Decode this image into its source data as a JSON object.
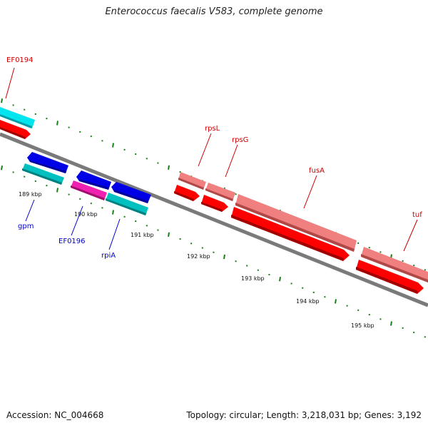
{
  "title": "Enterococcus faecalis V583, complete genome",
  "colors": {
    "forward_cds": "#ff0000",
    "forward_rrna_like": "#f08080",
    "reverse_cds": "#0000e6",
    "reverse_teal": "#00c0c0",
    "reverse_magenta": "#f020b0",
    "cyan_partial": "#00e5ee",
    "backbone": "#808080",
    "tick": "#1a7f1a",
    "label_forward": "#cc0000",
    "label_reverse": "#0000cc"
  },
  "ticks": [
    {
      "label": "189 kbp"
    },
    {
      "label": "190 kbp"
    },
    {
      "label": "191 kbp"
    },
    {
      "label": "192 kbp"
    },
    {
      "label": "193 kbp"
    },
    {
      "label": "194 kbp"
    },
    {
      "label": "195 kbp"
    }
  ],
  "gene_labels": {
    "ef0194": "EF0194",
    "rpsl": "rpsL",
    "rpsg": "rpsG",
    "fusa": "fusA",
    "tuf": "tuf",
    "gpm": "gpm",
    "ef0196": "EF0196",
    "rpia": "rpiA"
  },
  "footer": {
    "accession": "Accession: NC_004668",
    "summary": "Topology: circular; Length: 3,218,031 bp; Genes: 3,192"
  }
}
